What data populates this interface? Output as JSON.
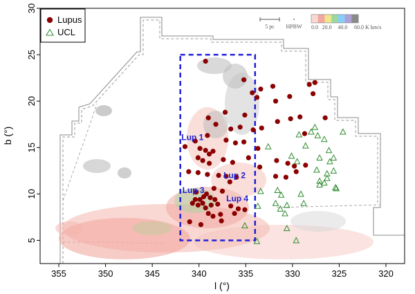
{
  "chart_data": {
    "type": "scatter",
    "xlabel": "l (°)",
    "ylabel": "b (°)",
    "xlim": [
      357,
      318
    ],
    "ylim": [
      2.5,
      30
    ],
    "xticks": [
      355,
      350,
      345,
      340,
      335,
      330,
      325,
      320
    ],
    "yticks": [
      5,
      10,
      15,
      20,
      25,
      30
    ],
    "legend": {
      "placement": "top-left",
      "items": [
        {
          "name": "Lupus",
          "marker": "filled-circle",
          "color": "#8b0000"
        },
        {
          "name": "UCL",
          "marker": "open-triangle",
          "color": "#2e8b2e"
        }
      ]
    },
    "scalebar_label": "5 pc",
    "hpbw_label": "HPBW",
    "colorbar": {
      "ticks": [
        "0.0",
        "20.0",
        "40.0",
        "60.0 K km/s"
      ],
      "colors": [
        "#f7d9d2",
        "#f2a8a0",
        "#f0e68c",
        "#9fd89f",
        "#87cefa",
        "#b0a0d8",
        "#8a8a8a"
      ]
    },
    "box": {
      "l_min": 334,
      "l_max": 342,
      "b_min": 5,
      "b_max": 25,
      "color": "#1f1fd9"
    },
    "regions": [
      {
        "label": "Lup 1",
        "l": 340.7,
        "b": 15.8
      },
      {
        "label": "Lup 2",
        "l": 336.2,
        "b": 11.7
      },
      {
        "label": "Lup 3",
        "l": 340.6,
        "b": 10.1
      },
      {
        "label": "Lup 4",
        "l": 335.9,
        "b": 9.2
      }
    ],
    "series": [
      {
        "name": "Lupus",
        "points": [
          [
            339.3,
            24.3
          ],
          [
            335.2,
            22.3
          ],
          [
            333.4,
            21.3
          ],
          [
            332.1,
            21.6
          ],
          [
            328.2,
            21.8
          ],
          [
            327.6,
            22.0
          ],
          [
            334.3,
            20.9
          ],
          [
            333.8,
            20.4
          ],
          [
            331.8,
            20.0
          ],
          [
            330.3,
            20.5
          ],
          [
            327.8,
            20.8
          ],
          [
            337.2,
            18.8
          ],
          [
            335.1,
            18.5
          ],
          [
            330.2,
            18.1
          ],
          [
            329.2,
            18.3
          ],
          [
            326.5,
            18.2
          ],
          [
            331.6,
            17.8
          ],
          [
            338.2,
            17.5
          ],
          [
            339.0,
            18.2
          ],
          [
            336.6,
            17.0
          ],
          [
            335.6,
            17.2
          ],
          [
            334.2,
            16.9
          ],
          [
            333.3,
            17.1
          ],
          [
            328.7,
            16.5
          ],
          [
            339.1,
            16.3
          ],
          [
            340.4,
            15.7
          ],
          [
            341.5,
            15.1
          ],
          [
            337.1,
            15.8
          ],
          [
            336.1,
            15.5
          ],
          [
            335.2,
            15.6
          ],
          [
            333.7,
            14.9
          ],
          [
            339.9,
            14.9
          ],
          [
            339.3,
            14.7
          ],
          [
            338.9,
            14.3
          ],
          [
            338.5,
            14.6
          ],
          [
            340.1,
            13.9
          ],
          [
            339.6,
            13.6
          ],
          [
            338.9,
            13.3
          ],
          [
            337.4,
            13.7
          ],
          [
            336.4,
            13.4
          ],
          [
            334.7,
            13.9
          ],
          [
            331.7,
            13.6
          ],
          [
            330.5,
            13.3
          ],
          [
            329.8,
            13.0
          ],
          [
            328.6,
            13.1
          ],
          [
            333.5,
            12.9
          ],
          [
            341.1,
            12.4
          ],
          [
            340.1,
            12.3
          ],
          [
            339.1,
            12.1
          ],
          [
            337.9,
            12.0
          ],
          [
            337.1,
            11.9
          ],
          [
            336.7,
            11.3
          ],
          [
            336.0,
            11.8
          ],
          [
            331.8,
            11.9
          ],
          [
            330.7,
            11.8
          ],
          [
            329.6,
            12.4
          ],
          [
            339.2,
            10.0
          ],
          [
            339.9,
            9.4
          ],
          [
            340.4,
            9.4
          ],
          [
            339.6,
            9.0
          ],
          [
            340.1,
            8.8
          ],
          [
            338.8,
            9.6
          ],
          [
            338.7,
            8.8
          ],
          [
            339.3,
            8.5
          ],
          [
            338.3,
            9.4
          ],
          [
            340.7,
            9.0
          ],
          [
            339.0,
            7.9
          ],
          [
            338.5,
            7.6
          ],
          [
            337.7,
            7.8
          ],
          [
            336.6,
            8.7
          ],
          [
            335.8,
            8.4
          ],
          [
            335.1,
            8.3
          ],
          [
            336.2,
            7.9
          ],
          [
            339.8,
            6.7
          ],
          [
            341.0,
            7.0
          ],
          [
            337.6,
            7.1
          ],
          [
            339.5,
            9.7
          ],
          [
            338.0,
            8.9
          ],
          [
            340.3,
            10.2
          ],
          [
            338.4,
            10.6
          ],
          [
            337.5,
            10.3
          ]
        ]
      },
      {
        "name": "UCL",
        "points": [
          [
            327.6,
            17.2
          ],
          [
            328.0,
            16.7
          ],
          [
            329.3,
            16.4
          ],
          [
            327.3,
            16.3
          ],
          [
            324.6,
            16.7
          ],
          [
            326.6,
            15.9
          ],
          [
            332.6,
            15.1
          ],
          [
            328.6,
            15.2
          ],
          [
            326.1,
            14.7
          ],
          [
            330.1,
            14.1
          ],
          [
            329.5,
            13.5
          ],
          [
            327.1,
            13.9
          ],
          [
            326.0,
            13.5
          ],
          [
            325.6,
            13.9
          ],
          [
            327.4,
            12.6
          ],
          [
            326.3,
            12.2
          ],
          [
            325.6,
            12.5
          ],
          [
            326.3,
            11.7
          ],
          [
            327.1,
            11.4
          ],
          [
            327.1,
            11.0
          ],
          [
            326.6,
            11.2
          ],
          [
            325.3,
            10.6
          ],
          [
            325.4,
            10.7
          ],
          [
            331.6,
            10.4
          ],
          [
            333.4,
            10.3
          ],
          [
            329.1,
            10.0
          ],
          [
            331.2,
            9.9
          ],
          [
            331.8,
            9.0
          ],
          [
            328.8,
            9.0
          ],
          [
            333.7,
            8.7
          ],
          [
            330.6,
            8.8
          ],
          [
            331.3,
            8.4
          ],
          [
            330.8,
            7.9
          ],
          [
            335.1,
            6.6
          ],
          [
            330.6,
            6.3
          ],
          [
            329.6,
            5.0
          ],
          [
            333.8,
            4.9
          ]
        ]
      }
    ]
  }
}
